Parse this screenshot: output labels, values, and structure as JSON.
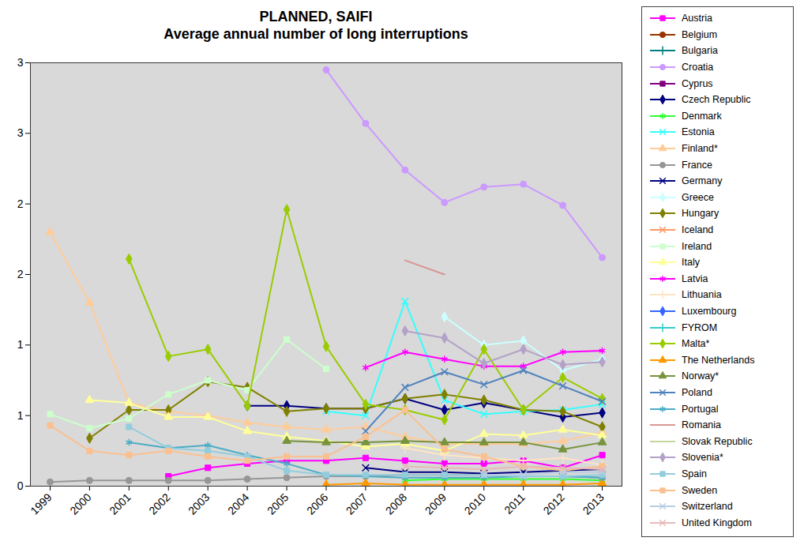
{
  "chart_data": {
    "type": "line",
    "title": "PLANNED, SAIFI",
    "subtitle": "Average annual number of long interruptions",
    "x": [
      1999,
      2000,
      2001,
      2002,
      2003,
      2004,
      2005,
      2006,
      2007,
      2008,
      2009,
      2010,
      2011,
      2012,
      2013
    ],
    "xlim": [
      1998.5,
      2013.5
    ],
    "xticks": [
      1999,
      2000,
      2001,
      2002,
      2003,
      2004,
      2005,
      2006,
      2007,
      2008,
      2009,
      2010,
      2011,
      2012,
      2013
    ],
    "ylim": [
      0,
      3
    ],
    "yticks": [
      0,
      {
        "value": 0.5,
        "label": "1"
      },
      1,
      {
        "value": 1.5,
        "label": "2"
      },
      2,
      {
        "value": 2.5,
        "label": "3"
      },
      3
    ],
    "grid": false,
    "legend": "right",
    "series": [
      {
        "name": "Austria",
        "color": "#FF00FF",
        "marker": "square",
        "values": [
          null,
          null,
          null,
          0.07,
          0.13,
          0.16,
          0.18,
          0.18,
          0.2,
          0.18,
          0.16,
          0.16,
          0.18,
          0.13,
          0.22
        ]
      },
      {
        "name": "Belgium",
        "color": "#993300",
        "marker": "circle",
        "values": [
          null,
          null,
          null,
          null,
          null,
          null,
          null,
          null,
          null,
          null,
          null,
          null,
          null,
          null,
          null
        ]
      },
      {
        "name": "Bulgaria",
        "color": "#008080",
        "marker": "plus",
        "values": [
          null,
          null,
          null,
          null,
          null,
          null,
          null,
          null,
          null,
          null,
          null,
          null,
          null,
          null,
          null
        ]
      },
      {
        "name": "Croatia",
        "color": "#CC99FF",
        "marker": "circle",
        "values": [
          null,
          null,
          null,
          null,
          null,
          null,
          null,
          2.95,
          2.57,
          2.24,
          2.01,
          2.12,
          2.14,
          1.99,
          1.62
        ]
      },
      {
        "name": "Cyprus",
        "color": "#800080",
        "marker": "square",
        "values": [
          null,
          null,
          null,
          null,
          null,
          null,
          null,
          null,
          null,
          null,
          null,
          null,
          null,
          null,
          null
        ]
      },
      {
        "name": "Czech Republic",
        "color": "#000080",
        "marker": "diamond",
        "values": [
          null,
          null,
          null,
          null,
          null,
          0.57,
          0.57,
          0.55,
          0.55,
          0.62,
          0.54,
          0.59,
          0.54,
          0.49,
          0.52
        ]
      },
      {
        "name": "Denmark",
        "color": "#33FF33",
        "marker": "asterisk",
        "values": [
          null,
          null,
          null,
          null,
          null,
          null,
          null,
          null,
          null,
          0.04,
          0.05,
          0.05,
          0.05,
          0.05,
          0.04
        ]
      },
      {
        "name": "Estonia",
        "color": "#33FFFF",
        "marker": "times",
        "values": [
          null,
          null,
          null,
          null,
          null,
          null,
          null,
          0.53,
          0.5,
          1.31,
          0.61,
          0.51,
          0.53,
          0.54,
          0.58
        ]
      },
      {
        "name": "Finland*",
        "color": "#FFCC99",
        "marker": "triangle",
        "values": [
          1.8,
          1.3,
          0.59,
          0.53,
          0.5,
          0.45,
          0.42,
          0.4,
          0.42,
          0.35,
          0.3,
          0.3,
          0.3,
          0.32,
          0.38
        ]
      },
      {
        "name": "France",
        "color": "#969696",
        "marker": "circle",
        "values": [
          0.03,
          0.04,
          0.04,
          0.04,
          0.04,
          0.05,
          0.06,
          0.07,
          0.07,
          0.08,
          0.08,
          0.08,
          0.07,
          0.07,
          0.06
        ]
      },
      {
        "name": "Germany",
        "color": "#000080",
        "marker": "times",
        "values": [
          null,
          null,
          null,
          null,
          null,
          null,
          null,
          null,
          0.13,
          0.1,
          0.1,
          0.09,
          0.1,
          0.11,
          0.12
        ]
      },
      {
        "name": "Greece",
        "color": "#CCFFFF",
        "marker": "diamond",
        "values": [
          null,
          null,
          null,
          null,
          null,
          null,
          null,
          null,
          null,
          null,
          1.2,
          1.0,
          1.03,
          0.82,
          0.9
        ]
      },
      {
        "name": "Hungary",
        "color": "#808000",
        "marker": "diamond",
        "values": [
          null,
          0.34,
          0.54,
          0.54,
          0.74,
          0.7,
          0.53,
          0.55,
          0.55,
          0.62,
          0.65,
          0.61,
          0.54,
          0.53,
          0.42
        ]
      },
      {
        "name": "Iceland",
        "color": "#FF9966",
        "marker": "times",
        "values": [
          null,
          null,
          null,
          null,
          null,
          null,
          null,
          null,
          null,
          null,
          null,
          null,
          null,
          null,
          null
        ]
      },
      {
        "name": "Ireland",
        "color": "#CCFFCC",
        "marker": "square",
        "values": [
          0.51,
          0.41,
          0.48,
          0.65,
          0.75,
          0.68,
          1.04,
          0.83,
          null,
          null,
          null,
          null,
          null,
          null,
          null
        ]
      },
      {
        "name": "Italy",
        "color": "#FFFF99",
        "marker": "triangle",
        "values": [
          null,
          0.61,
          0.59,
          0.49,
          0.49,
          0.39,
          0.35,
          0.32,
          0.28,
          0.3,
          0.25,
          0.37,
          0.36,
          0.4,
          0.36
        ]
      },
      {
        "name": "Latvia",
        "color": "#FF00FF",
        "marker": "asterisk",
        "values": [
          null,
          null,
          null,
          null,
          null,
          null,
          null,
          null,
          0.84,
          0.95,
          0.9,
          0.85,
          0.85,
          0.95,
          0.96
        ]
      },
      {
        "name": "Lithuania",
        "color": "#FFE4C4",
        "marker": "plus",
        "values": [
          null,
          null,
          null,
          null,
          null,
          null,
          null,
          null,
          null,
          0.27,
          0.22,
          0.2,
          0.18,
          0.2,
          0.15
        ]
      },
      {
        "name": "Luxembourg",
        "color": "#3366FF",
        "marker": "diamond",
        "values": [
          null,
          null,
          null,
          null,
          null,
          null,
          null,
          null,
          null,
          null,
          null,
          null,
          null,
          null,
          null
        ]
      },
      {
        "name": "FYROM",
        "color": "#33CCCC",
        "marker": "plus",
        "values": [
          null,
          null,
          null,
          null,
          null,
          null,
          null,
          null,
          null,
          null,
          null,
          null,
          null,
          null,
          null
        ]
      },
      {
        "name": "Malta*",
        "color": "#99CC00",
        "marker": "diamond",
        "values": [
          null,
          null,
          1.61,
          0.92,
          0.97,
          0.57,
          1.96,
          0.99,
          0.58,
          0.54,
          0.47,
          0.97,
          0.54,
          0.77,
          0.62
        ]
      },
      {
        "name": "The Netherlands",
        "color": "#FF9900",
        "marker": "triangle",
        "values": [
          null,
          null,
          null,
          null,
          null,
          null,
          null,
          0.01,
          0.02,
          0.01,
          0.01,
          0.01,
          0.01,
          0.01,
          0.02
        ]
      },
      {
        "name": "Norway*",
        "color": "#77933C",
        "marker": "triangle",
        "values": [
          null,
          null,
          null,
          null,
          null,
          null,
          0.32,
          0.31,
          0.31,
          0.32,
          0.31,
          0.31,
          0.31,
          0.26,
          0.31
        ]
      },
      {
        "name": "Poland",
        "color": "#4F81BD",
        "marker": "times",
        "values": [
          null,
          null,
          null,
          null,
          null,
          null,
          null,
          null,
          0.39,
          0.7,
          0.81,
          0.72,
          0.82,
          0.71,
          0.6
        ]
      },
      {
        "name": "Portugal",
        "color": "#4BACC6",
        "marker": "asterisk",
        "values": [
          null,
          null,
          0.31,
          0.27,
          0.29,
          0.22,
          0.16,
          0.08,
          0.07,
          0.06,
          0.06,
          0.06,
          0.07,
          0.07,
          0.06
        ]
      },
      {
        "name": "Romania",
        "color": "#D99694",
        "marker": "none",
        "values": [
          null,
          null,
          null,
          null,
          null,
          null,
          null,
          null,
          null,
          1.6,
          1.5,
          null,
          null,
          null,
          null
        ]
      },
      {
        "name": "Slovak Republic",
        "color": "#C3D69B",
        "marker": "none",
        "values": [
          null,
          null,
          null,
          null,
          null,
          null,
          null,
          null,
          null,
          null,
          null,
          null,
          null,
          null,
          null
        ]
      },
      {
        "name": "Slovenia*",
        "color": "#B3A2C7",
        "marker": "diamond",
        "values": [
          null,
          null,
          null,
          null,
          null,
          null,
          null,
          null,
          null,
          1.1,
          1.05,
          0.87,
          0.97,
          0.86,
          0.88
        ]
      },
      {
        "name": "Spain",
        "color": "#93CDDD",
        "marker": "square",
        "values": [
          null,
          null,
          0.42,
          0.27,
          0.25,
          0.21,
          0.11,
          0.08,
          0.08,
          0.08,
          0.08,
          0.08,
          0.07,
          0.07,
          0.08
        ]
      },
      {
        "name": "Sweden",
        "color": "#FAC090",
        "marker": "square",
        "values": [
          0.43,
          0.25,
          0.22,
          0.25,
          0.21,
          0.18,
          0.21,
          0.21,
          0.35,
          0.54,
          0.26,
          0.21,
          0.14,
          0.11,
          0.14
        ]
      },
      {
        "name": "Switzerland",
        "color": "#B9CDE5",
        "marker": "times",
        "values": [
          null,
          null,
          null,
          null,
          null,
          null,
          null,
          null,
          null,
          null,
          null,
          0.08,
          0.08,
          0.1,
          0.1
        ]
      },
      {
        "name": "United Kingdom",
        "color": "#E6B9B8",
        "marker": "times",
        "values": [
          null,
          null,
          null,
          null,
          null,
          null,
          null,
          null,
          null,
          0.14,
          0.13,
          0.12,
          0.14,
          0.13,
          0.12
        ]
      }
    ]
  }
}
